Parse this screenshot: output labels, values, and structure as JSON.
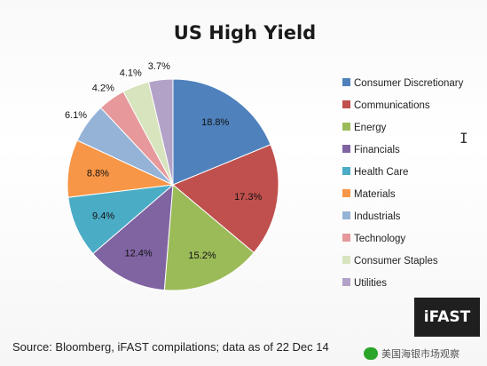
{
  "chart_data": {
    "type": "pie",
    "title": "US High Yield",
    "categories": [
      "Consumer Discretionary",
      "Communications",
      "Energy",
      "Financials",
      "Health Care",
      "Materials",
      "Industrials",
      "Technology",
      "Consumer Staples",
      "Utilities"
    ],
    "values": [
      18.8,
      17.3,
      15.2,
      12.4,
      9.4,
      8.8,
      6.1,
      4.2,
      4.1,
      3.7
    ],
    "value_labels": [
      "18.8%",
      "17.3%",
      "15.2%",
      "12.4%",
      "9.4%",
      "8.8%",
      "6.1%",
      "4.2%",
      "4.1%",
      "3.7%"
    ],
    "colors": [
      "#4f81bd",
      "#c0504d",
      "#9bbb59",
      "#8064a2",
      "#4bacc6",
      "#f79646",
      "#95b3d7",
      "#e6989a",
      "#d7e4bd",
      "#b3a2c7"
    ],
    "legend_position": "right"
  },
  "source_note": "Source: Bloomberg, iFAST compilations; data as of 22 Dec 14",
  "logo_text": "iFAST",
  "watermark_text": "美国海银市场观察",
  "cursor_icon": "text-cursor-icon"
}
